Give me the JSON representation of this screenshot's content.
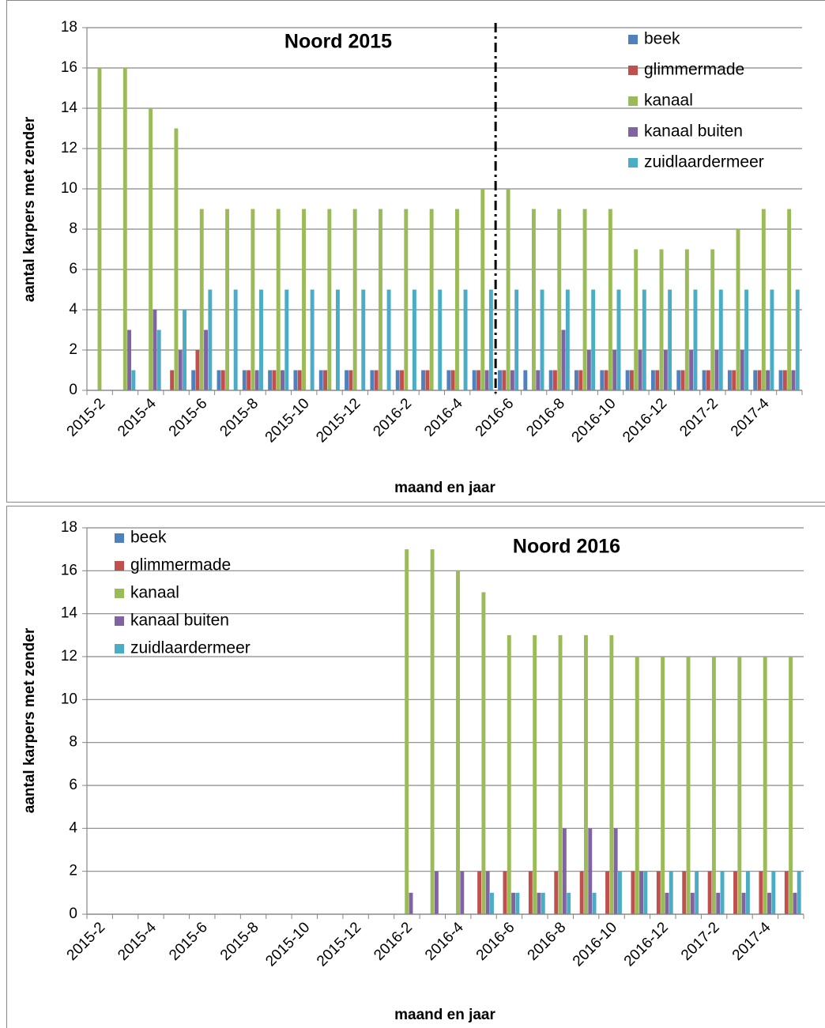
{
  "chart_data": [
    {
      "type": "bar",
      "title": "Noord 2015",
      "xlabel": "maand en jaar",
      "ylabel": "aantal karpers met zender",
      "categories": [
        "2015-2",
        null,
        "2015-4",
        null,
        "2015-6",
        null,
        "2015-8",
        null,
        "2015-10",
        null,
        "2015-12",
        null,
        "2016-2",
        null,
        "2016-4",
        null,
        "2016-6",
        null,
        "2016-8",
        null,
        "2016-10",
        null,
        "2016-12",
        null,
        "2017-2",
        null,
        "2017-4",
        null
      ],
      "series": [
        {
          "name": "beek",
          "color": "#4f81bd",
          "values": [
            0,
            0,
            0,
            0,
            1,
            1,
            1,
            1,
            1,
            1,
            1,
            1,
            1,
            1,
            1,
            1,
            1,
            1,
            1,
            1,
            1,
            1,
            1,
            1,
            1,
            1,
            1,
            1
          ]
        },
        {
          "name": "glimmermade",
          "color": "#c0504d",
          "values": [
            0,
            0,
            0,
            1,
            2,
            1,
            1,
            1,
            1,
            1,
            1,
            1,
            1,
            1,
            1,
            1,
            1,
            0,
            1,
            1,
            1,
            1,
            1,
            1,
            1,
            1,
            1,
            1
          ]
        },
        {
          "name": "kanaal",
          "color": "#9bbb59",
          "values": [
            16,
            16,
            14,
            13,
            9,
            9,
            9,
            9,
            9,
            9,
            9,
            9,
            9,
            9,
            9,
            10,
            10,
            9,
            9,
            9,
            9,
            7,
            7,
            7,
            7,
            8,
            9,
            9
          ]
        },
        {
          "name": "kanaal buiten",
          "color": "#8064a2",
          "values": [
            0,
            3,
            4,
            2,
            3,
            0,
            1,
            1,
            0,
            0,
            0,
            0,
            0,
            0,
            0,
            1,
            1,
            1,
            3,
            2,
            2,
            2,
            2,
            2,
            2,
            2,
            1,
            1
          ]
        },
        {
          "name": "zuidlaardermeer",
          "color": "#4bacc6",
          "values": [
            0,
            1,
            3,
            4,
            5,
            5,
            5,
            5,
            5,
            5,
            5,
            5,
            5,
            5,
            5,
            5,
            5,
            5,
            5,
            5,
            5,
            5,
            5,
            5,
            5,
            5,
            5,
            5
          ]
        }
      ],
      "ylim": [
        0,
        18
      ],
      "yticks": [
        0,
        2,
        4,
        6,
        8,
        10,
        12,
        14,
        16,
        18
      ],
      "grid": true,
      "legend": "upper right"
    },
    {
      "type": "bar",
      "title": "Noord 2016",
      "xlabel": "maand en jaar",
      "ylabel": "aantal karpers met zender",
      "categories": [
        "2015-2",
        null,
        "2015-4",
        null,
        "2015-6",
        null,
        "2015-8",
        null,
        "2015-10",
        null,
        "2015-12",
        null,
        "2016-2",
        null,
        "2016-4",
        null,
        "2016-6",
        null,
        "2016-8",
        null,
        "2016-10",
        null,
        "2016-12",
        null,
        "2017-2",
        null,
        "2017-4",
        null
      ],
      "series": [
        {
          "name": "beek",
          "color": "#4f81bd",
          "values": [
            0,
            0,
            0,
            0,
            0,
            0,
            0,
            0,
            0,
            0,
            0,
            0,
            0,
            0,
            0,
            0,
            0,
            0,
            0,
            0,
            0,
            0,
            0,
            0,
            0,
            0,
            0,
            0
          ]
        },
        {
          "name": "glimmermade",
          "color": "#c0504d",
          "values": [
            0,
            0,
            0,
            0,
            0,
            0,
            0,
            0,
            0,
            0,
            0,
            0,
            0,
            0,
            0,
            2,
            2,
            2,
            2,
            2,
            2,
            2,
            2,
            2,
            2,
            2,
            2,
            2
          ]
        },
        {
          "name": "kanaal",
          "color": "#9bbb59",
          "values": [
            0,
            0,
            0,
            0,
            0,
            0,
            0,
            0,
            0,
            0,
            0,
            0,
            17,
            17,
            16,
            15,
            13,
            13,
            13,
            13,
            13,
            12,
            12,
            12,
            12,
            12,
            12,
            12
          ]
        },
        {
          "name": "kanaal buiten",
          "color": "#8064a2",
          "values": [
            0,
            0,
            0,
            0,
            0,
            0,
            0,
            0,
            0,
            0,
            0,
            0,
            1,
            2,
            2,
            2,
            1,
            1,
            4,
            4,
            4,
            2,
            1,
            1,
            1,
            1,
            1,
            1
          ]
        },
        {
          "name": "zuidlaardermeer",
          "color": "#4bacc6",
          "values": [
            0,
            0,
            0,
            0,
            0,
            0,
            0,
            0,
            0,
            0,
            0,
            0,
            0,
            0,
            0,
            1,
            1,
            1,
            1,
            1,
            2,
            2,
            2,
            2,
            2,
            2,
            2,
            2
          ]
        }
      ],
      "ylim": [
        0,
        18
      ],
      "yticks": [
        0,
        2,
        4,
        6,
        8,
        10,
        12,
        14,
        16,
        18
      ],
      "grid": true,
      "legend": "upper left"
    }
  ]
}
